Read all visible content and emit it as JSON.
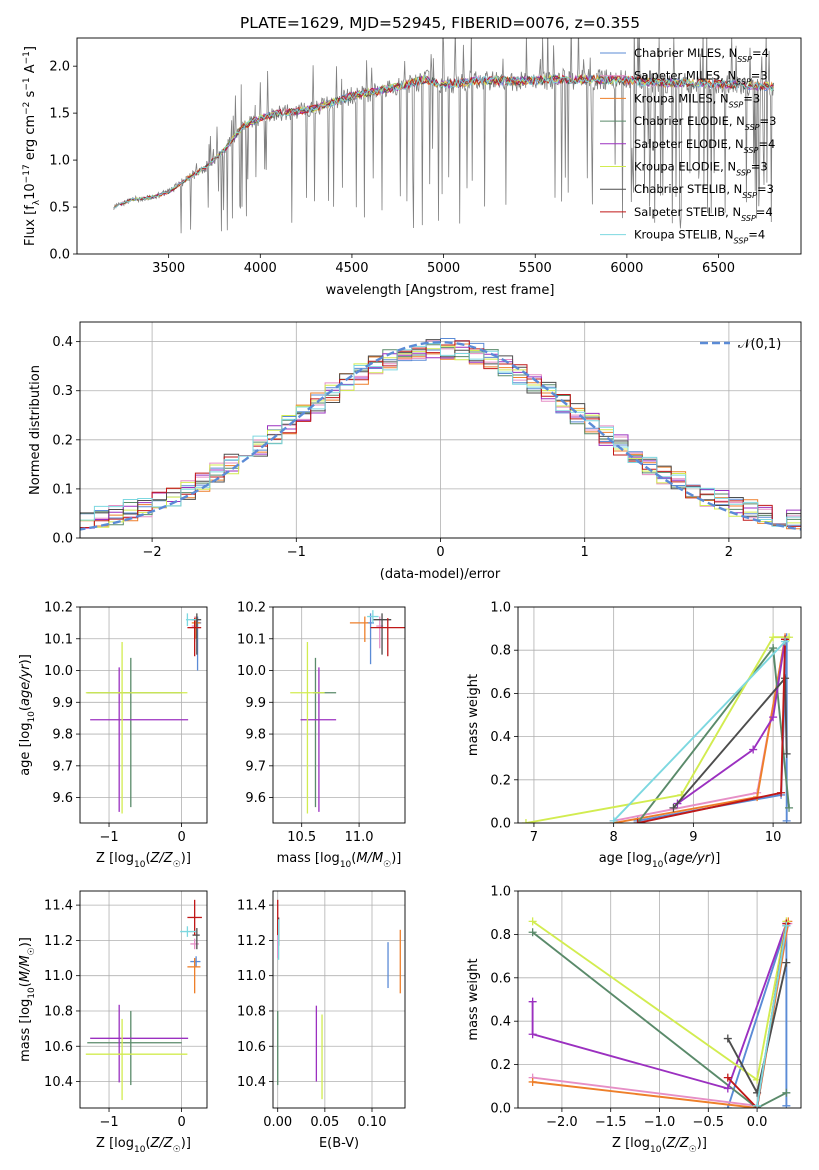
{
  "figure_title": "PLATE=1629, MJD=52945, FIBERID=0076, z=0.355",
  "colors": {
    "Chabrier MILES": "#5b8bd6",
    "Salpeter MILES": "#e68fc6",
    "Kroupa MILES": "#ee7f2a",
    "Chabrier ELODIE": "#5a8a6a",
    "Salpeter ELODIE": "#9b30c0",
    "Kroupa ELODIE": "#d2ec50",
    "Chabrier STELIB": "#4d4d4d",
    "Salpeter STELIB": "#c01818",
    "Kroupa STELIB": "#7dd8e0",
    "data": "#808080",
    "normal": "#5b8bd6"
  },
  "chart_data": [
    {
      "type": "line",
      "title": "PLATE=1629, MJD=52945, FIBERID=0076, z=0.355",
      "xlabel": "wavelength [Angstrom, rest frame]",
      "ylabel": "Flux [f_λ 10^-17 erg cm^-2 s^-1 A^-1]",
      "ylabel_parts": {
        "a": "Flux [f",
        "b": "λ",
        "c": "10",
        "d": "−17",
        "e": " erg cm",
        "f": "−2",
        "g": " s",
        "h": "−1",
        "i": " A",
        "j": "−1",
        "k": "]"
      },
      "xlim": [
        3000,
        6950
      ],
      "ylim": [
        0,
        2.3
      ],
      "xticks": [
        3500,
        4000,
        4500,
        5000,
        5500,
        6000,
        6500
      ],
      "yticks": [
        0.0,
        0.5,
        1.0,
        1.5,
        2.0
      ],
      "legend_position": "right",
      "series": [
        {
          "name": "Chabrier MILES",
          "nssp": "4"
        },
        {
          "name": "Salpeter MILES",
          "nssp": "3"
        },
        {
          "name": "Kroupa MILES",
          "nssp": "3"
        },
        {
          "name": "Chabrier ELODIE",
          "nssp": "3"
        },
        {
          "name": "Salpeter ELODIE",
          "nssp": "4"
        },
        {
          "name": "Kroupa ELODIE",
          "nssp": "3"
        },
        {
          "name": "Chabrier STELIB",
          "nssp": "3"
        },
        {
          "name": "Salpeter STELIB",
          "nssp": "4"
        },
        {
          "name": "Kroupa STELIB",
          "nssp": "4"
        }
      ],
      "nssp_prefix": "N",
      "nssp_sub": "SSP",
      "continuum": {
        "x": [
          3200,
          3300,
          3400,
          3500,
          3600,
          3700,
          3800,
          3900,
          4000,
          4100,
          4200,
          4300,
          4400,
          4500,
          4600,
          4700,
          4800,
          4900,
          5000,
          5200,
          5400,
          5600,
          5800,
          6000,
          6200,
          6400,
          6600,
          6800
        ],
        "y": [
          0.5,
          0.58,
          0.6,
          0.66,
          0.8,
          0.92,
          1.1,
          1.35,
          1.45,
          1.5,
          1.52,
          1.55,
          1.62,
          1.68,
          1.72,
          1.76,
          1.8,
          1.86,
          1.8,
          1.85,
          1.84,
          1.86,
          1.86,
          1.85,
          1.82,
          1.82,
          1.8,
          1.78
        ]
      }
    },
    {
      "type": "line",
      "xlabel": "(data-model)/error",
      "ylabel": "Normed distribution",
      "xlim": [
        -2.5,
        2.5
      ],
      "ylim": [
        0,
        0.44
      ],
      "xticks": [
        -2,
        -1,
        0,
        1,
        2
      ],
      "yticks": [
        0.0,
        0.1,
        0.2,
        0.3,
        0.4
      ],
      "legend": {
        "label": "𝒩(0,1)",
        "position": "top-right"
      },
      "normal": {
        "mean": 0,
        "sigma": 1
      },
      "bin_width": 0.1
    },
    {
      "type": "scatter",
      "xlabel": "Z [log10(Z/Z☉)]",
      "ylabel": "age  [log10(age/yr)]",
      "xlim": [
        -1.4,
        0.35
      ],
      "ylim": [
        9.52,
        10.2
      ],
      "xticks": [
        -1,
        0
      ],
      "yticks": [
        9.6,
        9.7,
        9.8,
        9.9,
        10.0,
        10.1,
        10.2
      ],
      "points": [
        {
          "series": "Chabrier MILES",
          "x": 0.22,
          "y": 10.15,
          "xerr": [
            0.05,
            0.05
          ],
          "yerr": [
            0.15,
            0.02
          ]
        },
        {
          "series": "Salpeter MILES",
          "x": 0.18,
          "y": 10.14,
          "xerr": [
            0.04,
            0.04
          ],
          "yerr": [
            0.05,
            0.03
          ]
        },
        {
          "series": "Kroupa MILES",
          "x": 0.2,
          "y": 10.15,
          "xerr": [
            0.06,
            0.06
          ],
          "yerr": [
            0.05,
            0.02
          ]
        },
        {
          "series": "Chabrier ELODIE",
          "x": -0.7,
          "y": 9.93,
          "xerr": [
            0.6,
            0.7
          ],
          "yerr": [
            0.36,
            0.11
          ]
        },
        {
          "series": "Salpeter ELODIE",
          "x": -0.86,
          "y": 9.845,
          "xerr": [
            0.4,
            0.95
          ],
          "yerr": [
            0.29,
            0.165
          ]
        },
        {
          "series": "Kroupa ELODIE",
          "x": -0.82,
          "y": 9.93,
          "xerr": [
            0.5,
            0.9
          ],
          "yerr": [
            0.38,
            0.16
          ]
        },
        {
          "series": "Chabrier STELIB",
          "x": 0.21,
          "y": 10.16,
          "xerr": [
            0.07,
            0.06
          ],
          "yerr": [
            0.11,
            0.02
          ]
        },
        {
          "series": "Salpeter STELIB",
          "x": 0.18,
          "y": 10.135,
          "xerr": [
            0.1,
            0.09
          ],
          "yerr": [
            0.09,
            0.03
          ]
        },
        {
          "series": "Kroupa STELIB",
          "x": 0.08,
          "y": 10.16,
          "xerr": [
            0.02,
            0.12
          ],
          "yerr": [
            0.02,
            0.02
          ]
        }
      ]
    },
    {
      "type": "scatter",
      "xlabel": "mass [log10(M/M☉)]",
      "ylabel": "",
      "xlim": [
        10.25,
        11.4
      ],
      "ylim": [
        9.52,
        10.2
      ],
      "xticks": [
        10.5,
        11.0
      ],
      "xtick_labels": [
        "10.5",
        "11.0"
      ],
      "yticks": [
        9.6,
        9.7,
        9.8,
        9.9,
        10.0,
        10.1,
        10.2
      ],
      "points": [
        {
          "series": "Chabrier MILES",
          "x": 11.1,
          "y": 10.15,
          "xerr": [
            0.03,
            0.03
          ],
          "yerr": [
            0.13,
            0.03
          ]
        },
        {
          "series": "Salpeter MILES",
          "x": 11.18,
          "y": 10.14,
          "xerr": [
            0.03,
            0.03
          ],
          "yerr": [
            0.07,
            0.03
          ]
        },
        {
          "series": "Kroupa MILES",
          "x": 11.05,
          "y": 10.15,
          "xerr": [
            0.13,
            0.03
          ],
          "yerr": [
            0.06,
            0.02
          ]
        },
        {
          "series": "Chabrier ELODIE",
          "x": 10.62,
          "y": 9.93,
          "xerr": [
            0.02,
            0.18
          ],
          "yerr": [
            0.36,
            0.11
          ]
        },
        {
          "series": "Salpeter ELODIE",
          "x": 10.65,
          "y": 9.845,
          "xerr": [
            0.16,
            0.15
          ],
          "yerr": [
            0.29,
            0.165
          ]
        },
        {
          "series": "Kroupa ELODIE",
          "x": 10.55,
          "y": 9.93,
          "xerr": [
            0.15,
            0.15
          ],
          "yerr": [
            0.38,
            0.16
          ]
        },
        {
          "series": "Chabrier STELIB",
          "x": 11.2,
          "y": 10.16,
          "xerr": [
            0.08,
            0.08
          ],
          "yerr": [
            0.11,
            0.02
          ]
        },
        {
          "series": "Salpeter STELIB",
          "x": 11.25,
          "y": 10.135,
          "xerr": [
            0.15,
            0.15
          ],
          "yerr": [
            0.09,
            0.03
          ]
        },
        {
          "series": "Kroupa STELIB",
          "x": 11.12,
          "y": 10.17,
          "xerr": [
            0.05,
            0.05
          ],
          "yerr": [
            0.02,
            0.02
          ]
        }
      ]
    },
    {
      "type": "line",
      "xlabel": "age  [log10(age/yr)]",
      "ylabel": "mass weight",
      "xlim": [
        6.8,
        10.35
      ],
      "ylim": [
        0,
        1.0
      ],
      "xticks": [
        7,
        8,
        9,
        10
      ],
      "yticks": [
        0.0,
        0.2,
        0.4,
        0.6,
        0.8,
        1.0
      ],
      "series": [
        {
          "name": "Chabrier MILES",
          "x": [
            8.3,
            10.1,
            10.17,
            10.17
          ],
          "y": [
            0.01,
            0.13,
            0.86,
            0.01
          ]
        },
        {
          "name": "Salpeter MILES",
          "x": [
            8.0,
            9.8,
            10.15
          ],
          "y": [
            0.01,
            0.14,
            0.85
          ]
        },
        {
          "name": "Kroupa MILES",
          "x": [
            8.0,
            9.8,
            10.15
          ],
          "y": [
            0.0,
            0.12,
            0.86
          ]
        },
        {
          "name": "Chabrier ELODIE",
          "x": [
            8.3,
            10.0,
            10.2
          ],
          "y": [
            0.0,
            0.81,
            0.07
          ]
        },
        {
          "name": "Salpeter ELODIE",
          "x": [
            8.8,
            9.75,
            10.0,
            10.15
          ],
          "y": [
            0.09,
            0.34,
            0.49,
            0.85
          ]
        },
        {
          "name": "Kroupa ELODIE",
          "x": [
            6.9,
            8.85,
            10.0,
            10.2
          ],
          "y": [
            0.0,
            0.13,
            0.86,
            0.86
          ]
        },
        {
          "name": "Chabrier STELIB",
          "x": [
            8.75,
            10.15,
            10.17
          ],
          "y": [
            0.07,
            0.67,
            0.32
          ]
        },
        {
          "name": "Salpeter STELIB",
          "x": [
            8.3,
            10.1,
            10.15
          ],
          "y": [
            0.0,
            0.14,
            0.85
          ]
        },
        {
          "name": "Kroupa STELIB",
          "x": [
            8.0,
            10.15
          ],
          "y": [
            0.01,
            0.84
          ]
        }
      ]
    },
    {
      "type": "scatter",
      "xlabel": "Z [log10(Z/Z☉)]",
      "ylabel": "mass [log10(M/M☉)]",
      "xlim": [
        -1.4,
        0.35
      ],
      "ylim": [
        10.25,
        11.48
      ],
      "xticks": [
        -1,
        0
      ],
      "yticks": [
        10.4,
        10.6,
        10.8,
        11.0,
        11.2,
        11.4
      ],
      "points": [
        {
          "series": "Chabrier MILES",
          "x": 0.2,
          "y": 11.08,
          "xerr": [
            0.08,
            0.06
          ],
          "yerr": [
            0.03,
            0.03
          ]
        },
        {
          "series": "Salpeter MILES",
          "x": 0.18,
          "y": 11.18,
          "xerr": [
            0.06,
            0.06
          ],
          "yerr": [
            0.03,
            0.03
          ]
        },
        {
          "series": "Kroupa MILES",
          "x": 0.18,
          "y": 11.05,
          "xerr": [
            0.1,
            0.08
          ],
          "yerr": [
            0.15,
            0.05
          ]
        },
        {
          "series": "Chabrier ELODIE",
          "x": -0.7,
          "y": 10.62,
          "xerr": [
            0.6,
            0.7
          ],
          "yerr": [
            0.24,
            0.18
          ]
        },
        {
          "series": "Salpeter ELODIE",
          "x": -0.86,
          "y": 10.645,
          "xerr": [
            0.4,
            0.95
          ],
          "yerr": [
            0.25,
            0.19
          ]
        },
        {
          "series": "Kroupa ELODIE",
          "x": -0.82,
          "y": 10.555,
          "xerr": [
            0.5,
            0.9
          ],
          "yerr": [
            0.26,
            0.2
          ]
        },
        {
          "series": "Chabrier STELIB",
          "x": 0.21,
          "y": 11.23,
          "xerr": [
            0.06,
            0.04
          ],
          "yerr": [
            0.08,
            0.04
          ]
        },
        {
          "series": "Salpeter STELIB",
          "x": 0.18,
          "y": 11.33,
          "xerr": [
            0.1,
            0.1
          ],
          "yerr": [
            0.1,
            0.1
          ]
        },
        {
          "series": "Kroupa STELIB",
          "x": 0.08,
          "y": 11.25,
          "xerr": [
            0.1,
            0.12
          ],
          "yerr": [
            0.03,
            0.03
          ]
        }
      ]
    },
    {
      "type": "scatter",
      "xlabel": "E(B-V)",
      "ylabel": "",
      "xlim": [
        -0.005,
        0.135
      ],
      "ylim": [
        10.25,
        11.48
      ],
      "xticks": [
        0.0,
        0.05,
        0.1
      ],
      "xtick_labels": [
        "0.00",
        "0.05",
        "0.10"
      ],
      "yticks": [
        10.4,
        10.6,
        10.8,
        11.0,
        11.2,
        11.4
      ],
      "points": [
        {
          "series": "Chabrier MILES",
          "x": 0.117,
          "y": 11.06,
          "yerr": [
            0.13,
            0.13
          ]
        },
        {
          "series": "Salpeter MILES",
          "x": 0.0,
          "y": 11.2,
          "yerr": [
            0.1,
            0.1
          ]
        },
        {
          "series": "Kroupa MILES",
          "x": 0.13,
          "y": 11.08,
          "yerr": [
            0.18,
            0.18
          ]
        },
        {
          "series": "Chabrier ELODIE",
          "x": 0.0,
          "y": 10.6,
          "yerr": [
            0.22,
            0.2
          ]
        },
        {
          "series": "Salpeter ELODIE",
          "x": 0.041,
          "y": 10.62,
          "yerr": [
            0.22,
            0.21
          ]
        },
        {
          "series": "Kroupa ELODIE",
          "x": 0.047,
          "y": 10.55,
          "yerr": [
            0.25,
            0.23
          ]
        },
        {
          "series": "Chabrier STELIB",
          "x": 0.001,
          "y": 11.25,
          "yerr": [
            0.08,
            0.08
          ]
        },
        {
          "series": "Salpeter STELIB",
          "x": 0.0,
          "y": 11.33,
          "yerr": [
            0.1,
            0.1
          ]
        },
        {
          "series": "Kroupa STELIB",
          "x": 0.001,
          "y": 11.22,
          "yerr": [
            0.13,
            0.1
          ]
        }
      ]
    },
    {
      "type": "line",
      "xlabel": "Z [log10(Z/Z☉)]",
      "ylabel": "mass weight",
      "xlim": [
        -2.45,
        0.45
      ],
      "ylim": [
        0,
        1.0
      ],
      "xticks": [
        -2.0,
        -1.5,
        -1.0,
        -0.5,
        0.0
      ],
      "xtick_labels": [
        "−2.0",
        "−1.5",
        "−1.0",
        "−0.5",
        "0.0"
      ],
      "yticks": [
        0.0,
        0.2,
        0.4,
        0.6,
        0.8,
        1.0
      ],
      "series": [
        {
          "name": "Chabrier MILES",
          "x": [
            -0.3,
            0.3,
            0.3
          ],
          "y": [
            0.0,
            0.84,
            0.01
          ]
        },
        {
          "name": "Salpeter MILES",
          "x": [
            -2.3,
            0.0,
            0.32
          ],
          "y": [
            0.14,
            0.01,
            0.85
          ]
        },
        {
          "name": "Kroupa MILES",
          "x": [
            -2.3,
            0.0,
            0.32
          ],
          "y": [
            0.12,
            0.0,
            0.86
          ]
        },
        {
          "name": "Chabrier ELODIE",
          "x": [
            -2.3,
            0.0,
            0.3
          ],
          "y": [
            0.81,
            0.0,
            0.07
          ]
        },
        {
          "name": "Salpeter ELODIE",
          "x": [
            -2.3,
            -2.3,
            -0.3,
            0.3
          ],
          "y": [
            0.49,
            0.34,
            0.09,
            0.85
          ]
        },
        {
          "name": "Kroupa ELODIE",
          "x": [
            -2.3,
            0.0,
            0.3
          ],
          "y": [
            0.86,
            0.13,
            0.86
          ]
        },
        {
          "name": "Chabrier STELIB",
          "x": [
            -0.3,
            0.0,
            0.3
          ],
          "y": [
            0.32,
            0.07,
            0.67
          ]
        },
        {
          "name": "Salpeter STELIB",
          "x": [
            -0.3,
            0.0,
            0.3
          ],
          "y": [
            0.14,
            0.0,
            0.85
          ]
        },
        {
          "name": "Kroupa STELIB",
          "x": [
            0.0,
            0.3
          ],
          "y": [
            0.01,
            0.84
          ]
        }
      ]
    }
  ]
}
